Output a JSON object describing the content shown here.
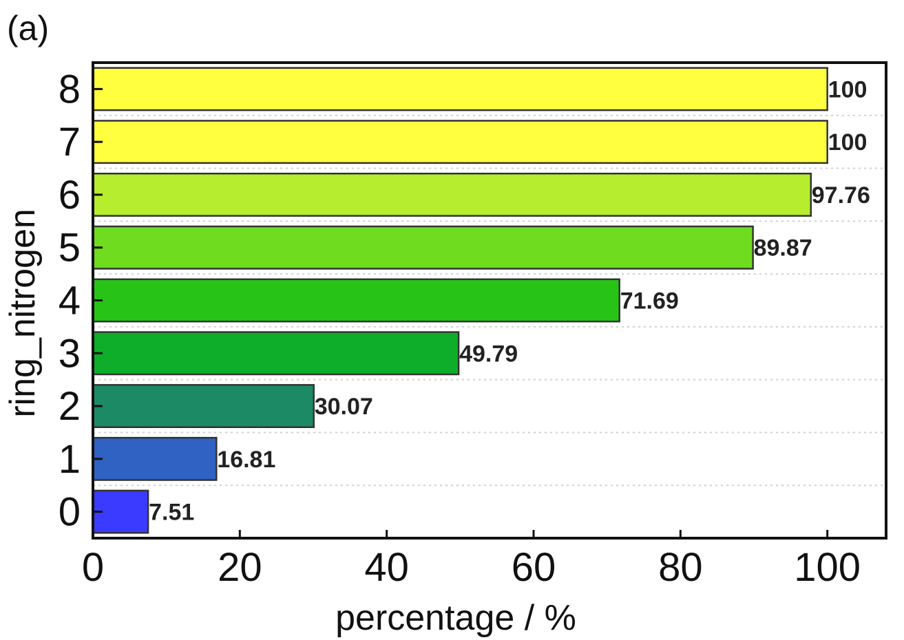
{
  "panel_label": "(a)",
  "chart_data": {
    "type": "bar",
    "orientation": "horizontal",
    "title": "",
    "xlabel": "percentage / %",
    "ylabel": "ring_nitrogen",
    "categories": [
      "0",
      "1",
      "2",
      "3",
      "4",
      "5",
      "6",
      "7",
      "8"
    ],
    "values": [
      7.51,
      16.81,
      30.07,
      49.79,
      71.69,
      89.87,
      97.76,
      100,
      100
    ],
    "value_labels": [
      "7.51",
      "16.81",
      "30.07",
      "49.79",
      "71.69",
      "89.87",
      "97.76",
      "100",
      "100"
    ],
    "colors": [
      "#3b3bff",
      "#2f62c2",
      "#1d8a66",
      "#0fae2a",
      "#27c417",
      "#6fdc1f",
      "#b6ed2f",
      "#ffff40",
      "#ffff40"
    ],
    "xlim": [
      0,
      108
    ],
    "xticks": [
      0,
      20,
      40,
      60,
      80,
      100
    ],
    "xtick_labels": [
      "0",
      "20",
      "40",
      "60",
      "80",
      "100"
    ],
    "grid": "horizontal dotted",
    "legend": "none"
  }
}
